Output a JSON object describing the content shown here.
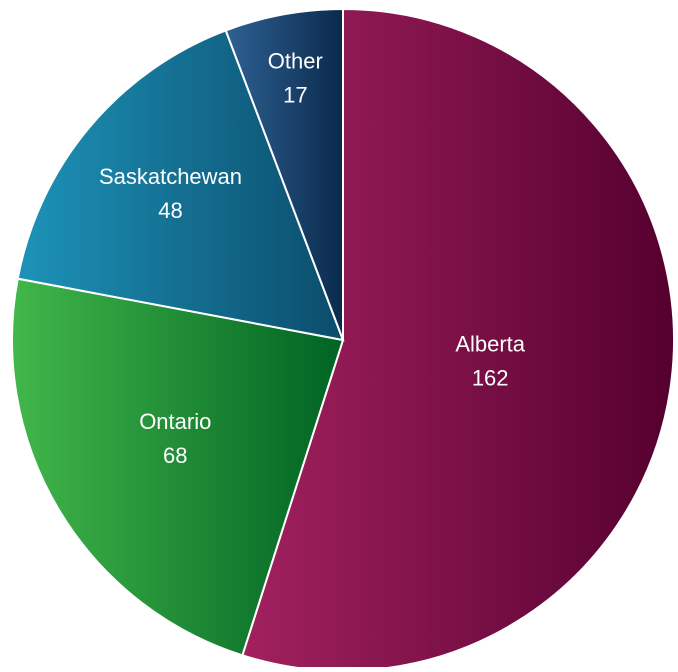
{
  "chart_data": {
    "type": "pie",
    "categories": [
      "Alberta",
      "Ontario",
      "Saskatchewan",
      "Other"
    ],
    "values": [
      162,
      68,
      48,
      17
    ],
    "colors": [
      [
        "#a2215f",
        "#55002f"
      ],
      [
        "#42b74a",
        "#006323"
      ],
      [
        "#1d93b9",
        "#0b4c6b"
      ],
      [
        "#2e6193",
        "#0a2a4c"
      ]
    ]
  }
}
